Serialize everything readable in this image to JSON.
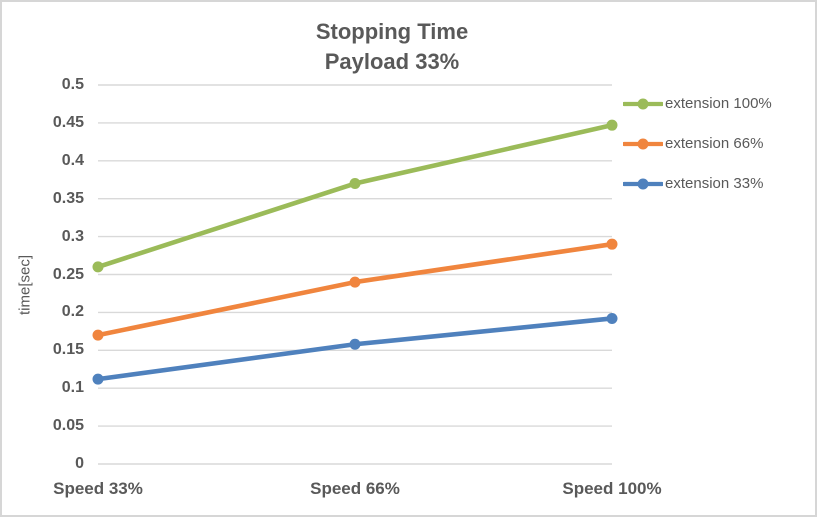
{
  "window": {
    "background_color": "#FFFFFF",
    "border_color": "#D6D6D6"
  },
  "title": {
    "line1": "Stopping Time",
    "line2": "Payload 33%",
    "color": "#595959"
  },
  "chart_data": {
    "type": "line",
    "title": "Stopping Time",
    "subtitle": "Payload 33%",
    "categories": [
      "Speed 33%",
      "Speed 66%",
      "Speed 100%"
    ],
    "series": [
      {
        "name": "extension 100%",
        "color": "#9BBB59",
        "values": [
          0.26,
          0.37,
          0.447
        ]
      },
      {
        "name": "extension 66%",
        "color": "#F0853E",
        "values": [
          0.17,
          0.24,
          0.29
        ]
      },
      {
        "name": "extension 33%",
        "color": "#4F81BD",
        "values": [
          0.112,
          0.158,
          0.192
        ]
      }
    ],
    "xlabel": "",
    "ylabel": "time[sec]",
    "ylim": [
      0,
      0.5
    ],
    "y_ticks": [
      0,
      0.05,
      0.1,
      0.15,
      0.2,
      0.25,
      0.3,
      0.35,
      0.4,
      0.45,
      0.5
    ],
    "grid": true,
    "grid_color": "#D9D9D9",
    "text_color": "#595959",
    "legend_position": "right",
    "marker": "circle"
  }
}
